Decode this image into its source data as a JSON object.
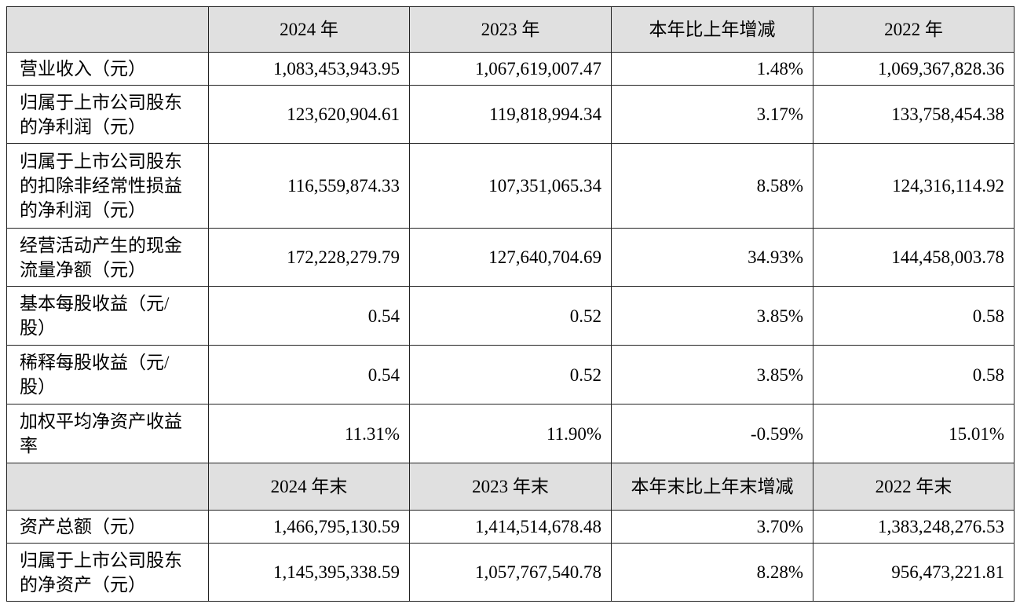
{
  "header_year": [
    "2024 年",
    "2023 年",
    "本年比上年增减",
    "2022 年"
  ],
  "rows_year": [
    {
      "label": [
        "营业收入（元）"
      ],
      "v": [
        "1,083,453,943.95",
        "1,067,619,007.47",
        "1.48%",
        "1,069,367,828.36"
      ]
    },
    {
      "label": [
        "归属于上市公司股东",
        "的净利润（元）"
      ],
      "v": [
        "123,620,904.61",
        "119,818,994.34",
        "3.17%",
        "133,758,454.38"
      ]
    },
    {
      "label": [
        "归属于上市公司股东",
        "的扣除非经常性损益",
        "的净利润（元）"
      ],
      "v": [
        "116,559,874.33",
        "107,351,065.34",
        "8.58%",
        "124,316,114.92"
      ]
    },
    {
      "label": [
        "经营活动产生的现金",
        "流量净额（元）"
      ],
      "v": [
        "172,228,279.79",
        "127,640,704.69",
        "34.93%",
        "144,458,003.78"
      ]
    },
    {
      "label": [
        "基本每股收益（元/",
        "股）"
      ],
      "v": [
        "0.54",
        "0.52",
        "3.85%",
        "0.58"
      ]
    },
    {
      "label": [
        "稀释每股收益（元/",
        "股）"
      ],
      "v": [
        "0.54",
        "0.52",
        "3.85%",
        "0.58"
      ]
    },
    {
      "label": [
        "加权平均净资产收益",
        "率"
      ],
      "v": [
        "11.31%",
        "11.90%",
        "-0.59%",
        "15.01%"
      ]
    }
  ],
  "header_yearend": [
    "2024 年末",
    "2023 年末",
    "本年末比上年末增减",
    "2022 年末"
  ],
  "rows_yearend": [
    {
      "label": [
        "资产总额（元）"
      ],
      "v": [
        "1,466,795,130.59",
        "1,414,514,678.48",
        "3.70%",
        "1,383,248,276.53"
      ]
    },
    {
      "label": [
        "归属于上市公司股东",
        "的净资产（元）"
      ],
      "v": [
        "1,145,395,338.59",
        "1,057,767,540.78",
        "8.28%",
        "956,473,221.81"
      ]
    }
  ]
}
